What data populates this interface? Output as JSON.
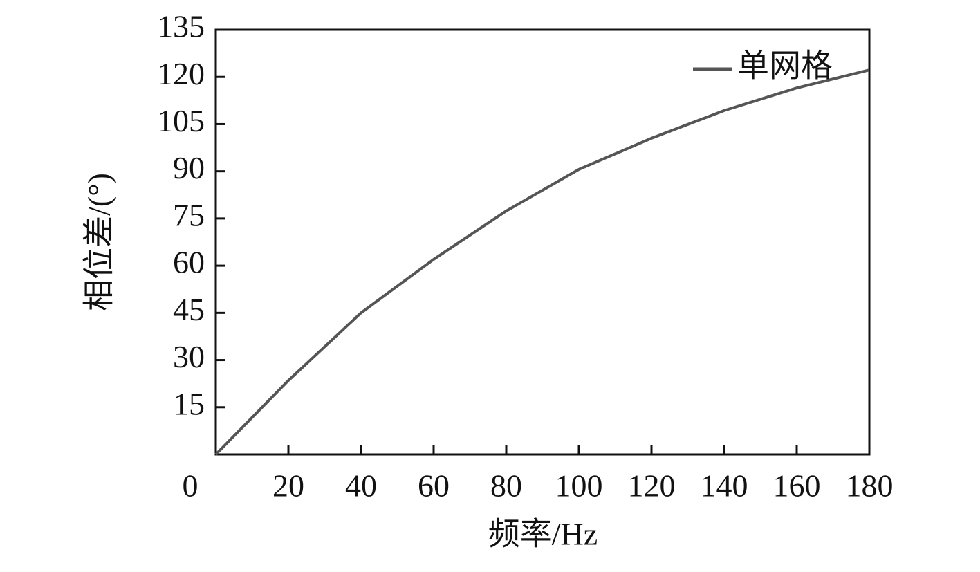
{
  "chart_data": {
    "type": "line",
    "x_label": "频率/Hz",
    "y_label": "相位差/(°)",
    "x": [
      0,
      20,
      40,
      60,
      80,
      100,
      120,
      140,
      160,
      180
    ],
    "series": [
      {
        "name": "单网格",
        "color": "#555555",
        "values": [
          0,
          23.5,
          45,
          62,
          77.4,
          90.6,
          100.5,
          109.3,
          116.5,
          122.2
        ]
      }
    ],
    "xlim": [
      0,
      180
    ],
    "ylim": [
      0,
      135
    ],
    "xticks": [
      0,
      20,
      40,
      60,
      80,
      100,
      120,
      140,
      160,
      180
    ],
    "yticks": [
      15,
      30,
      45,
      60,
      75,
      90,
      105,
      120,
      135
    ],
    "legend": "upper-right"
  }
}
